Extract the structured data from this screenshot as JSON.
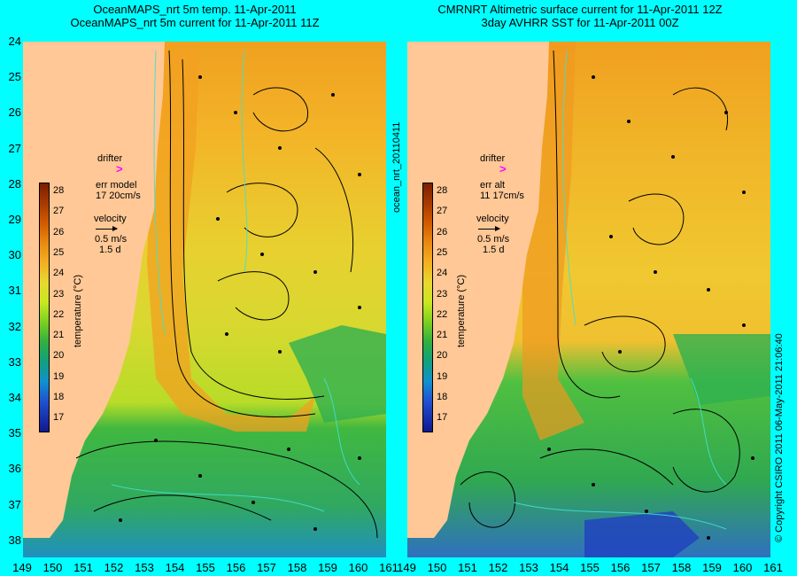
{
  "left_panel": {
    "title_line1": "OceanMAPS_nrt 5m temp. 11-Apr-2011",
    "title_line2": "OceanMAPS_nrt 5m current for 11-Apr-2011 11Z",
    "drifter_label": "drifter",
    "err_label": "err model",
    "err_value": "17 20cm/s",
    "velocity_label": "velocity",
    "velocity_scale": "0.5 m/s",
    "velocity_time": "1.5 d",
    "drifter_symbol": ">"
  },
  "right_panel": {
    "title_line1": "CMRNRT Altimetric surface current for 11-Apr-2011 12Z",
    "title_line2": "3day AVHRR SST for 11-Apr-2011 00Z",
    "drifter_label": "drifter",
    "err_label": "err alt",
    "err_value": "11 17cm/s",
    "velocity_label": "velocity",
    "velocity_scale": "0.5 m/s",
    "velocity_time": "1.5 d",
    "drifter_symbol": ">"
  },
  "colorbar": {
    "axis_label": "temperature (°C)",
    "ticks": [
      "28",
      "27",
      "26",
      "25",
      "24",
      "23",
      "22",
      "21",
      "20",
      "19",
      "18",
      "17"
    ]
  },
  "latitudes": [
    "24",
    "25",
    "26",
    "27",
    "28",
    "29",
    "30",
    "31",
    "32",
    "33",
    "34",
    "35",
    "36",
    "37",
    "38"
  ],
  "longitudes": [
    "149",
    "150",
    "151",
    "152",
    "153",
    "154",
    "155",
    "156",
    "157",
    "158",
    "159",
    "160",
    "161"
  ],
  "side_label": "ocean_nrt_20110411",
  "copyright": "© Copyright CSIRO 2011   06-May-2011 21:06:40",
  "colors": {
    "background": "#00ffff",
    "land": "#ffc896",
    "drifter": "#ff00ff"
  }
}
